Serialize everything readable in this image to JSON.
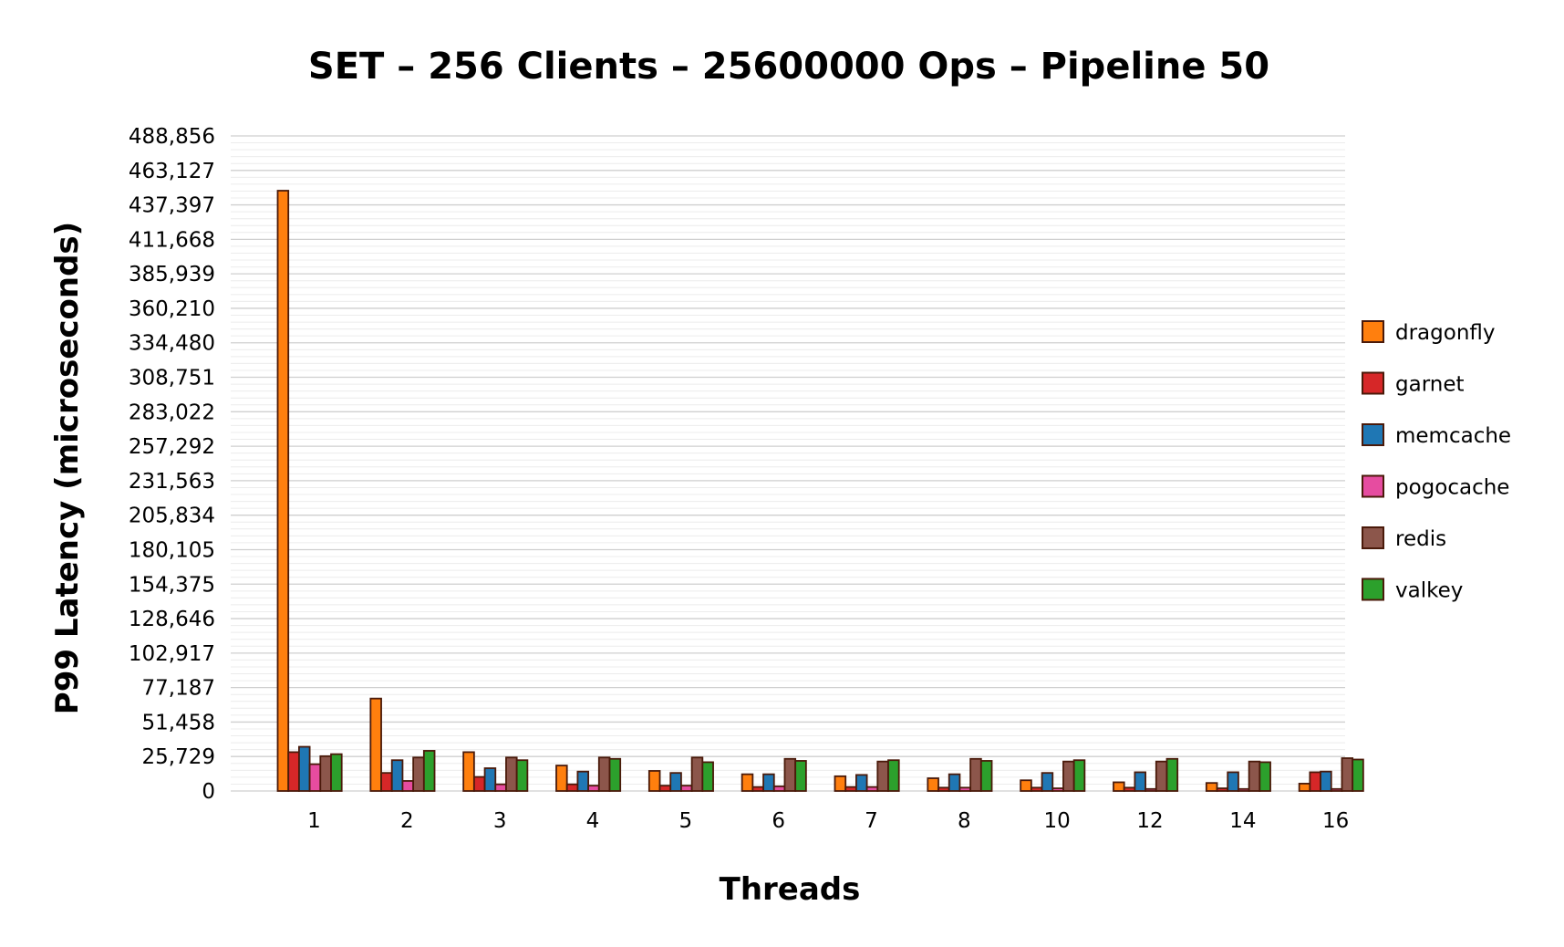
{
  "chart_data": {
    "type": "bar",
    "title": "SET – 256 Clients – 25600000 Ops – Pipeline 50",
    "xlabel": "Threads",
    "ylabel": "P99 Latency (microseconds)",
    "categories": [
      "1",
      "2",
      "3",
      "4",
      "5",
      "6",
      "7",
      "8",
      "10",
      "12",
      "14",
      "16"
    ],
    "yticks": [
      "0",
      "25,729",
      "51,458",
      "77,187",
      "102,917",
      "128,646",
      "154,375",
      "180,105",
      "205,834",
      "231,563",
      "257,292",
      "283,022",
      "308,751",
      "334,480",
      "360,210",
      "385,939",
      "411,668",
      "437,397",
      "463,127",
      "488,856"
    ],
    "ylim": [
      0,
      488856
    ],
    "grid": true,
    "legend_position": "right",
    "series": [
      {
        "name": "dragonfly",
        "color": "#ff7f0e",
        "values": [
          448000,
          69000,
          29000,
          19000,
          15000,
          12500,
          11000,
          9500,
          8000,
          6500,
          6000,
          5500
        ]
      },
      {
        "name": "garnet",
        "color": "#d62728",
        "values": [
          29000,
          13500,
          10500,
          5000,
          4000,
          3000,
          3000,
          2500,
          2500,
          2500,
          2000,
          14000
        ]
      },
      {
        "name": "memcache",
        "color": "#1f77b4",
        "values": [
          33000,
          23000,
          17000,
          14500,
          13500,
          12500,
          12000,
          12500,
          13500,
          14000,
          14000,
          14500
        ]
      },
      {
        "name": "pogocache",
        "color": "#e64ca0",
        "values": [
          20000,
          7500,
          5000,
          4000,
          4000,
          3500,
          3000,
          2500,
          2000,
          1500,
          1500,
          1500
        ]
      },
      {
        "name": "redis",
        "color": "#8c564b",
        "values": [
          26000,
          25000,
          25000,
          25000,
          25000,
          24000,
          22000,
          24000,
          22000,
          22000,
          22000,
          24500
        ]
      },
      {
        "name": "valkey",
        "color": "#2ca02c",
        "values": [
          27500,
          30000,
          23000,
          24000,
          21500,
          22500,
          23000,
          22500,
          23000,
          24000,
          21500,
          23500
        ]
      }
    ]
  }
}
